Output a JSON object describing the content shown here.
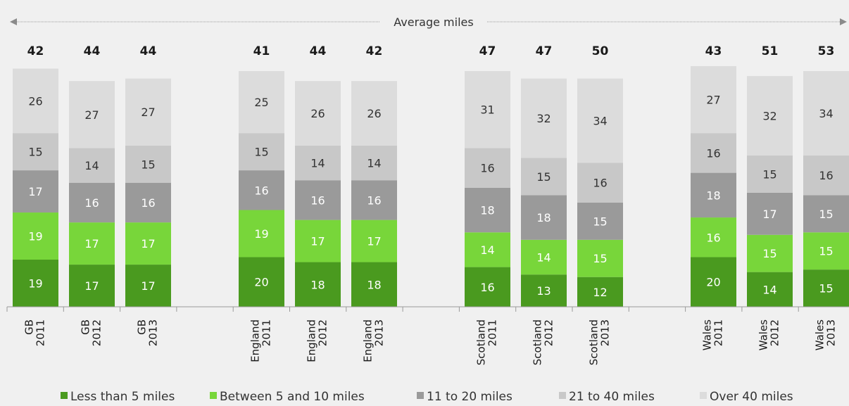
{
  "chart_data": {
    "type": "bar",
    "stacked": true,
    "title": "",
    "header": "Average miles",
    "categories": [
      [
        "GB",
        "2011"
      ],
      [
        "GB",
        "2012"
      ],
      [
        "GB",
        "2013"
      ],
      [
        "England",
        "2011"
      ],
      [
        "England",
        "2012"
      ],
      [
        "England",
        "2013"
      ],
      [
        "Scotland",
        "2011"
      ],
      [
        "Scotland",
        "2012"
      ],
      [
        "Scotland",
        "2013"
      ],
      [
        "Wales",
        "2011"
      ],
      [
        "Wales",
        "2012"
      ],
      [
        "Wales",
        "2013"
      ]
    ],
    "average_miles": [
      42,
      44,
      44,
      41,
      44,
      42,
      47,
      47,
      50,
      43,
      51,
      53
    ],
    "series": [
      {
        "name": "Less than 5 miles",
        "color": "#4a9a1f",
        "label_color": "#ffffff",
        "values": [
          19,
          17,
          17,
          20,
          18,
          18,
          16,
          13,
          12,
          20,
          14,
          15
        ]
      },
      {
        "name": "Between 5 and 10 miles",
        "color": "#78d63a",
        "label_color": "#ffffff",
        "values": [
          19,
          17,
          17,
          19,
          17,
          17,
          14,
          14,
          15,
          16,
          15,
          15
        ]
      },
      {
        "name": "11 to 20 miles",
        "color": "#9a9a9a",
        "label_color": "#ffffff",
        "values": [
          17,
          16,
          16,
          16,
          16,
          16,
          18,
          18,
          15,
          18,
          17,
          15
        ]
      },
      {
        "name": "21 to 40 miles",
        "color": "#c8c8c8",
        "label_color": "#333333",
        "values": [
          15,
          14,
          15,
          15,
          14,
          14,
          16,
          15,
          16,
          16,
          15,
          16
        ]
      },
      {
        "name": "Over 40 miles",
        "color": "#dcdcdc",
        "label_color": "#333333",
        "values": [
          26,
          27,
          27,
          25,
          26,
          26,
          31,
          32,
          34,
          27,
          32,
          34
        ]
      }
    ],
    "legend_position": "bottom",
    "grid": false
  }
}
